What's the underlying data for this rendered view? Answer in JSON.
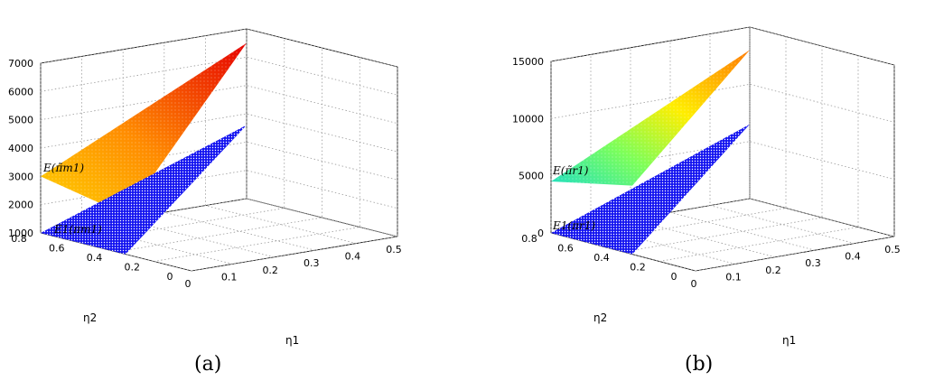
{
  "chart_data": [
    {
      "type": "surface",
      "caption": "(a)",
      "xlabel": "η₁",
      "ylabel": "η₂",
      "zlabel": "",
      "xlim": [
        0,
        0.5
      ],
      "ylim": [
        0,
        0.8
      ],
      "zlim": [
        1000,
        7000
      ],
      "x_ticks": [
        "0",
        "0.1",
        "0.2",
        "0.3",
        "0.4",
        "0.5"
      ],
      "y_ticks": [
        "0",
        "0.2",
        "0.4",
        "0.6",
        "0.8"
      ],
      "z_ticks": [
        "1000",
        "2000",
        "3000",
        "4000",
        "5000",
        "6000",
        "7000"
      ],
      "grid": true,
      "series": [
        {
          "name": "E(π̃m1)",
          "colormap": "autumn",
          "corners": [
            {
              "x": 0.0,
              "y": 0.8,
              "z": 3000
            },
            {
              "x": 0.5,
              "y": 0.8,
              "z": 6500
            },
            {
              "x": 0.0,
              "y": 0.35,
              "z": 2400
            }
          ]
        },
        {
          "name": "E1(πm1)",
          "color": "#1a1aff",
          "corners": [
            {
              "x": 0.0,
              "y": 0.8,
              "z": 1000
            },
            {
              "x": 0.5,
              "y": 0.8,
              "z": 3600
            },
            {
              "x": 0.0,
              "y": 0.35,
              "z": 1000
            }
          ]
        }
      ]
    },
    {
      "type": "surface",
      "caption": "(b)",
      "xlabel": "η₁",
      "ylabel": "η₂",
      "zlabel": "",
      "xlim": [
        0,
        0.5
      ],
      "ylim": [
        0,
        0.8
      ],
      "zlim": [
        0,
        15000
      ],
      "x_ticks": [
        "0",
        "0.1",
        "0.2",
        "0.3",
        "0.4",
        "0.5"
      ],
      "y_ticks": [
        "0",
        "0.2",
        "0.4",
        "0.6",
        "0.8"
      ],
      "z_ticks": [
        "0",
        "5000",
        "10000",
        "15000"
      ],
      "grid": true,
      "series": [
        {
          "name": "E(π̃r1)",
          "colormap": "jet",
          "corners": [
            {
              "x": 0.0,
              "y": 0.8,
              "z": 4500
            },
            {
              "x": 0.5,
              "y": 0.8,
              "z": 13000
            },
            {
              "x": 0.0,
              "y": 0.35,
              "z": 6000
            }
          ]
        },
        {
          "name": "E1(πr1)",
          "color": "#1a1aff",
          "corners": [
            {
              "x": 0.0,
              "y": 0.8,
              "z": 0
            },
            {
              "x": 0.5,
              "y": 0.8,
              "z": 6500
            },
            {
              "x": 0.0,
              "y": 0.35,
              "z": 0
            }
          ]
        }
      ]
    }
  ],
  "labels": {
    "a": {
      "upper": "E(π̃m1)",
      "lower": "E1(πm1)",
      "x": "η1",
      "y": "η2",
      "caption": "(a)"
    },
    "b": {
      "upper": "E(π̃r1)",
      "lower": "E1(πr1)",
      "x": "η1",
      "y": "η2",
      "caption": "(b)"
    }
  }
}
